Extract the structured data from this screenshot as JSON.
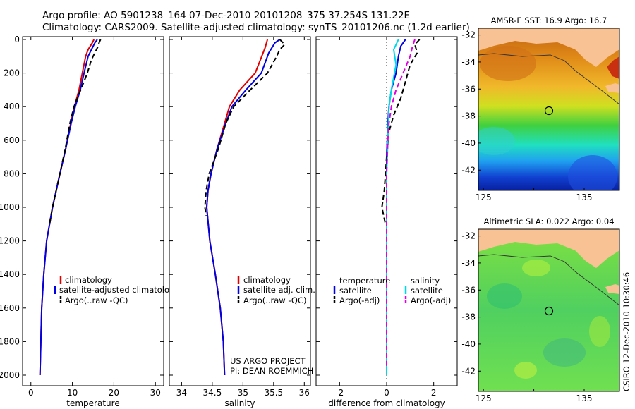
{
  "header": {
    "line1": "Argo profile: AO 5901238_164 07-Dec-2010 20101208_375 37.254S 131.22E",
    "line2": "Climatology: CARS2009. Satellite-adjusted climatology: synTS_20101206.nc (1.2d earlier)"
  },
  "colors": {
    "climatology": "#e00000",
    "satellite": "#0000e0",
    "argo": "#000000",
    "salinity_sat": "#00d8e8",
    "salinity_argo": "#e000e0",
    "land": "#f9c295"
  },
  "chart_data": [
    {
      "type": "line",
      "name": "temperature-profile",
      "xlabel": "temperature",
      "ylabel": "",
      "xlim": [
        -2,
        32
      ],
      "ylim": [
        2000,
        0
      ],
      "xticks": [
        0,
        10,
        20,
        30
      ],
      "yticks": [
        0,
        200,
        400,
        600,
        800,
        1000,
        1200,
        1400,
        1600,
        1800,
        2000
      ],
      "series": [
        {
          "name": "climatology",
          "style": "solid",
          "color": "#e00000",
          "points": [
            [
              15.2,
              0
            ],
            [
              14.8,
              20
            ],
            [
              13.8,
              60
            ],
            [
              13.2,
              100
            ],
            [
              12.4,
              200
            ],
            [
              11.6,
              300
            ],
            [
              10.5,
              400
            ],
            [
              9.6,
              500
            ],
            [
              8.4,
              650
            ],
            [
              7.0,
              800
            ],
            [
              5.2,
              1000
            ],
            [
              3.8,
              1200
            ],
            [
              3.1,
              1400
            ],
            [
              2.6,
              1600
            ],
            [
              2.4,
              1800
            ],
            [
              2.2,
              2000
            ]
          ]
        },
        {
          "name": "satellite-adjusted climatology",
          "style": "solid",
          "color": "#0000e0",
          "points": [
            [
              16.0,
              0
            ],
            [
              15.4,
              20
            ],
            [
              14.6,
              60
            ],
            [
              13.8,
              100
            ],
            [
              12.8,
              200
            ],
            [
              11.9,
              300
            ],
            [
              10.7,
              400
            ],
            [
              9.7,
              500
            ],
            [
              8.4,
              650
            ],
            [
              7.0,
              800
            ],
            [
              5.2,
              1000
            ],
            [
              3.8,
              1200
            ],
            [
              3.1,
              1400
            ],
            [
              2.6,
              1600
            ],
            [
              2.4,
              1800
            ],
            [
              2.2,
              2000
            ]
          ]
        },
        {
          "name": "Argo(..raw -QC)",
          "style": "dashed",
          "color": "#000000",
          "points": [
            [
              16.8,
              0
            ],
            [
              16.5,
              15
            ],
            [
              16.2,
              40
            ],
            [
              15.4,
              80
            ],
            [
              14.6,
              120
            ],
            [
              13.6,
              200
            ],
            [
              12.0,
              300
            ],
            [
              10.4,
              400
            ],
            [
              9.4,
              500
            ],
            [
              8.3,
              650
            ],
            [
              7.0,
              800
            ],
            [
              5.2,
              1000
            ],
            [
              4.5,
              1100
            ]
          ]
        }
      ],
      "legend": [
        "climatology",
        "satellite-adjusted climatology",
        "Argo(..raw -QC)"
      ]
    },
    {
      "type": "line",
      "name": "salinity-profile",
      "xlabel": "salinity",
      "ylabel": "",
      "xlim": [
        33.8,
        36.1
      ],
      "ylim": [
        2000,
        0
      ],
      "xticks": [
        34,
        34.5,
        35,
        35.5,
        36
      ],
      "series": [
        {
          "name": "climatology",
          "style": "solid",
          "color": "#e00000",
          "points": [
            [
              35.4,
              0
            ],
            [
              35.36,
              50
            ],
            [
              35.2,
              200
            ],
            [
              34.95,
              300
            ],
            [
              34.78,
              400
            ],
            [
              34.7,
              500
            ],
            [
              34.58,
              650
            ],
            [
              34.48,
              800
            ],
            [
              34.43,
              900
            ],
            [
              34.41,
              1000
            ],
            [
              34.46,
              1200
            ],
            [
              34.55,
              1400
            ],
            [
              34.63,
              1600
            ],
            [
              34.68,
              1800
            ],
            [
              34.7,
              2000
            ]
          ]
        },
        {
          "name": "satellite adj. clim.",
          "style": "solid",
          "color": "#0000e0",
          "points": [
            [
              35.6,
              0
            ],
            [
              35.52,
              20
            ],
            [
              35.42,
              80
            ],
            [
              35.3,
              200
            ],
            [
              35.05,
              300
            ],
            [
              34.82,
              400
            ],
            [
              34.72,
              500
            ],
            [
              34.58,
              650
            ],
            [
              34.48,
              800
            ],
            [
              34.43,
              900
            ],
            [
              34.41,
              1000
            ],
            [
              34.46,
              1200
            ],
            [
              34.55,
              1400
            ],
            [
              34.63,
              1600
            ],
            [
              34.68,
              1800
            ],
            [
              34.7,
              2000
            ]
          ]
        },
        {
          "name": "Argo(..raw -QC)",
          "style": "dashed",
          "color": "#000000",
          "points": [
            [
              35.6,
              0
            ],
            [
              35.68,
              30
            ],
            [
              35.6,
              60
            ],
            [
              35.55,
              100
            ],
            [
              35.4,
              200
            ],
            [
              35.12,
              300
            ],
            [
              34.85,
              400
            ],
            [
              34.72,
              500
            ],
            [
              34.6,
              650
            ],
            [
              34.45,
              800
            ],
            [
              34.4,
              900
            ],
            [
              34.38,
              1000
            ],
            [
              34.4,
              1050
            ]
          ]
        }
      ],
      "legend": [
        "climatology",
        "satellite adj. clim.",
        "Argo(..raw -QC)"
      ],
      "annotation": [
        "US ARGO PROJECT",
        "PI: DEAN ROEMMICH"
      ]
    },
    {
      "type": "line",
      "name": "difference-profile",
      "xlabel": "difference from climatology",
      "ylabel": "",
      "xlim": [
        -3,
        3
      ],
      "ylim": [
        2000,
        0
      ],
      "xticks": [
        -2,
        0,
        2
      ],
      "series": [
        {
          "name": "temperature satellite",
          "style": "solid",
          "color": "#0000e0",
          "points": [
            [
              0.8,
              0
            ],
            [
              0.6,
              40
            ],
            [
              0.5,
              100
            ],
            [
              0.4,
              200
            ],
            [
              0.2,
              300
            ],
            [
              0.1,
              400
            ],
            [
              0.05,
              500
            ],
            [
              0,
              700
            ],
            [
              0,
              1000
            ],
            [
              0,
              1400
            ],
            [
              0,
              2000
            ]
          ]
        },
        {
          "name": "temperature Argo(-adj)",
          "style": "dashed",
          "color": "#000000",
          "points": [
            [
              1.4,
              0
            ],
            [
              1.2,
              30
            ],
            [
              1.3,
              80
            ],
            [
              1.0,
              150
            ],
            [
              0.8,
              250
            ],
            [
              0.6,
              350
            ],
            [
              0.3,
              450
            ],
            [
              0.1,
              550
            ],
            [
              0,
              700
            ],
            [
              -0.1,
              900
            ],
            [
              -0.2,
              1000
            ],
            [
              -0.05,
              1100
            ]
          ]
        },
        {
          "name": "salinity satellite",
          "style": "solid",
          "color": "#00d8e8",
          "points": [
            [
              0.5,
              0
            ],
            [
              0.3,
              60
            ],
            [
              0.4,
              150
            ],
            [
              0.2,
              300
            ],
            [
              0.1,
              400
            ],
            [
              0.05,
              600
            ],
            [
              0,
              800
            ],
            [
              0,
              1200
            ],
            [
              0,
              2000
            ]
          ]
        },
        {
          "name": "salinity Argo(-adj)",
          "style": "dashed",
          "color": "#e000e0",
          "points": [
            [
              1.2,
              0
            ],
            [
              1.1,
              40
            ],
            [
              1.0,
              100
            ],
            [
              0.7,
              200
            ],
            [
              0.4,
              300
            ],
            [
              0.2,
              400
            ],
            [
              0.1,
              500
            ],
            [
              0.05,
              600
            ],
            [
              0,
              800
            ],
            [
              0,
              1000
            ],
            [
              0,
              1400
            ],
            [
              0,
              1800
            ],
            [
              0,
              1950
            ]
          ]
        }
      ],
      "legend_temperature": [
        "temperature",
        "satellite",
        "Argo(-adj)"
      ],
      "legend_salinity": [
        "salinity",
        "satellite",
        "Argo(-adj)"
      ]
    },
    {
      "type": "heatmap",
      "name": "sst-map",
      "title": "AMSR-E SST: 16.9 Argo: 16.7",
      "xlim": [
        124.5,
        138.5
      ],
      "ylim": [
        -43.5,
        -31.5
      ],
      "xticks": [
        125,
        130,
        135
      ],
      "xticklabels": [
        "125",
        "",
        "135"
      ],
      "yticks": [
        -32,
        -34,
        -36,
        -38,
        -40,
        -42
      ],
      "marker": {
        "lon": 131.22,
        "lat": -37.254
      }
    },
    {
      "type": "heatmap",
      "name": "sla-map",
      "title": "Altimetric SLA: 0.022 Argo: 0.04",
      "xlim": [
        124.5,
        138.5
      ],
      "ylim": [
        -43.5,
        -31.5
      ],
      "xticks": [
        125,
        130,
        135
      ],
      "xticklabels": [
        "125",
        "",
        "135"
      ],
      "yticks": [
        -32,
        -34,
        -36,
        -38,
        -40,
        -42
      ],
      "marker": {
        "lon": 131.22,
        "lat": -37.254
      }
    }
  ],
  "credit": "CSIRO 12-Dec-2010 10:30:46"
}
